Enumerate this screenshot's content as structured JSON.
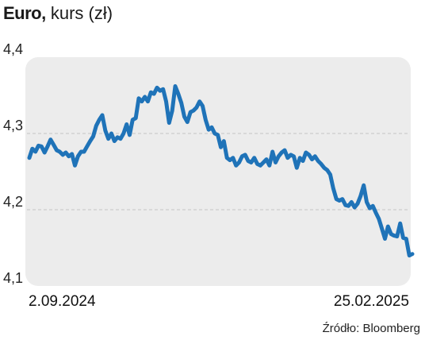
{
  "header": {
    "title_bold": "Euro,",
    "title_rest": " kurs (zł)"
  },
  "source": "Źródło: Bloomberg",
  "colors": {
    "line": "#1f73b8",
    "plot_bg": "#ececec",
    "grid": "#c4c4c4"
  },
  "chart_data": {
    "type": "line",
    "title": "Euro, kurs (zł)",
    "xlabel": "",
    "ylabel": "",
    "x_start_label": "2.09.2024",
    "x_end_label": "25.02.2025",
    "yticks": [
      "4,1",
      "4,2",
      "4,3",
      "4,4"
    ],
    "ylim": [
      4.1,
      4.4
    ],
    "grid": "horizontal dashed",
    "series": [
      {
        "values": [
          4.268,
          4.28,
          4.276,
          4.284,
          4.283,
          4.275,
          4.283,
          4.292,
          4.285,
          4.278,
          4.276,
          4.272,
          4.275,
          4.27,
          4.273,
          4.258,
          4.27,
          4.276,
          4.276,
          4.283,
          4.29,
          4.296,
          4.31,
          4.318,
          4.324,
          4.304,
          4.293,
          4.3,
          4.29,
          4.295,
          4.293,
          4.3,
          4.312,
          4.298,
          4.318,
          4.32,
          4.346,
          4.342,
          4.348,
          4.342,
          4.354,
          4.352,
          4.36,
          4.356,
          4.358,
          4.342,
          4.314,
          4.33,
          4.362,
          4.352,
          4.34,
          4.322,
          4.315,
          4.328,
          4.33,
          4.334,
          4.342,
          4.336,
          4.318,
          4.305,
          4.308,
          4.3,
          4.298,
          4.282,
          4.29,
          4.268,
          4.265,
          4.268,
          4.258,
          4.262,
          4.27,
          4.272,
          4.264,
          4.262,
          4.268,
          4.26,
          4.258,
          4.262,
          4.266,
          4.258,
          4.276,
          4.262,
          4.27,
          4.275,
          4.278,
          4.268,
          4.272,
          4.27,
          4.255,
          4.268,
          4.264,
          4.275,
          4.272,
          4.266,
          4.27,
          4.264,
          4.26,
          4.255,
          4.252,
          4.246,
          4.228,
          4.214,
          4.212,
          4.214,
          4.206,
          4.205,
          4.21,
          4.203,
          4.208,
          4.218,
          4.232,
          4.21,
          4.202,
          4.205,
          4.196,
          4.188,
          4.175,
          4.162,
          4.178,
          4.168,
          4.166,
          4.165,
          4.182,
          4.163,
          4.162,
          4.14,
          4.142
        ]
      }
    ]
  }
}
